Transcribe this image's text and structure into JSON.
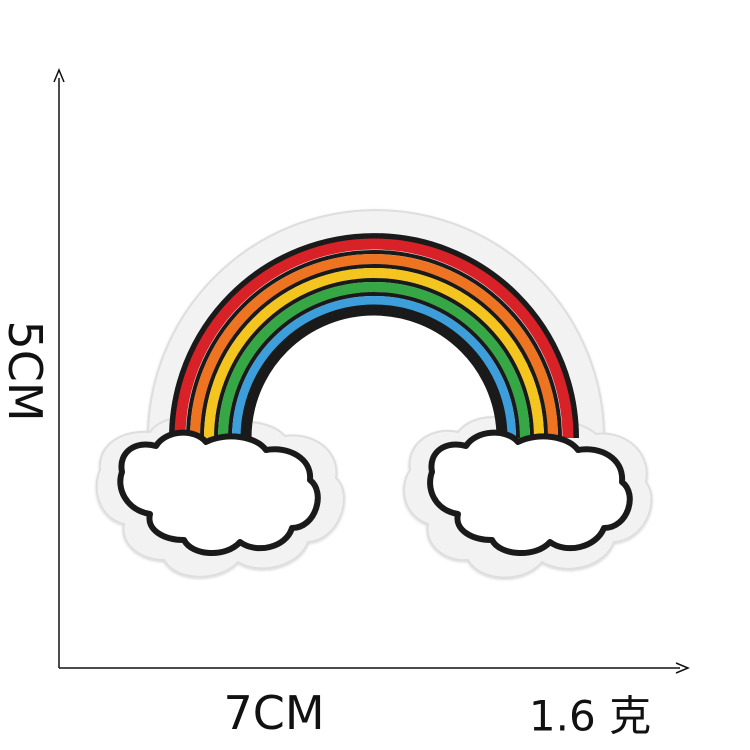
{
  "dimensions": {
    "height_label": "5CM",
    "width_label": "7CM",
    "weight_label": "1.6 克"
  },
  "patch": {
    "subject": "rainbow-with-clouds-embroidered-patch",
    "colors": {
      "felt": "#f2f2f2",
      "outline": "#1a1a1a",
      "red": "#d92128",
      "orange": "#ee7421",
      "yellow": "#f4c51e",
      "green": "#35a845",
      "blue": "#3c9fdc",
      "cloud_fill": "#ffffff"
    }
  }
}
